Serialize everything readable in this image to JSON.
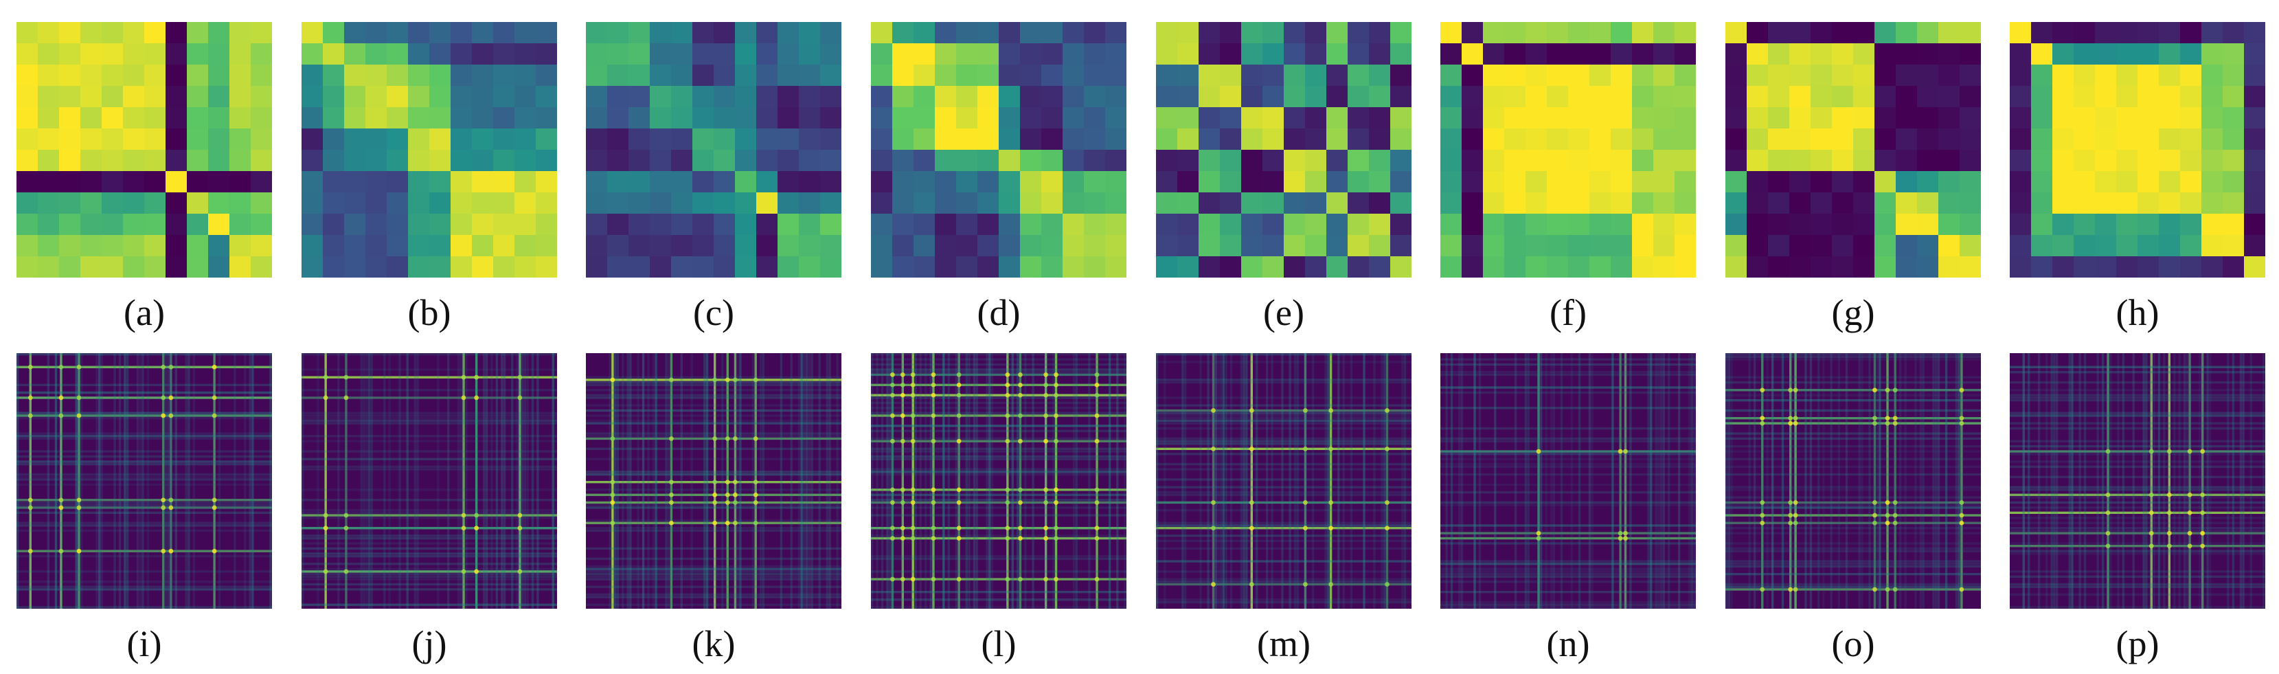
{
  "colors": {
    "colormap": "viridis",
    "viridis_stops": [
      "#440154",
      "#3b528b",
      "#21918c",
      "#5ec962",
      "#fde725"
    ],
    "background": "#ffffff",
    "label_color": "#111111"
  },
  "chart_data": [
    {
      "type": "heatmap",
      "label": "(a)",
      "size": 12,
      "blocks": [
        [
          0,
          7
        ],
        [
          7,
          8
        ],
        [
          8,
          9
        ],
        [
          9,
          10
        ],
        [
          10,
          12
        ]
      ],
      "pattern": "two-cluster"
    },
    {
      "type": "heatmap",
      "label": "(b)",
      "size": 12,
      "blocks": [
        [
          0,
          1
        ],
        [
          1,
          2
        ],
        [
          2,
          5
        ],
        [
          5,
          7
        ],
        [
          7,
          12
        ]
      ],
      "pattern": "central-high"
    },
    {
      "type": "heatmap",
      "label": "(c)",
      "size": 12,
      "blocks": [
        [
          0,
          3
        ],
        [
          3,
          5
        ],
        [
          5,
          7
        ],
        [
          7,
          8
        ],
        [
          8,
          9
        ],
        [
          9,
          12
        ]
      ],
      "pattern": "low-diffuse"
    },
    {
      "type": "heatmap",
      "label": "(d)",
      "size": 12,
      "blocks": [
        [
          0,
          1
        ],
        [
          1,
          3
        ],
        [
          3,
          6
        ],
        [
          6,
          7
        ],
        [
          7,
          9
        ],
        [
          9,
          12
        ]
      ],
      "pattern": "central-high"
    },
    {
      "type": "heatmap",
      "label": "(e)",
      "size": 12,
      "blocks": [
        [
          0,
          2
        ],
        [
          2,
          4
        ],
        [
          4,
          6
        ],
        [
          6,
          8
        ],
        [
          8,
          9
        ],
        [
          9,
          11
        ],
        [
          11,
          12
        ]
      ],
      "pattern": "checker"
    },
    {
      "type": "heatmap",
      "label": "(f)",
      "size": 12,
      "blocks": [
        [
          0,
          1
        ],
        [
          1,
          2
        ],
        [
          2,
          9
        ],
        [
          9,
          12
        ]
      ],
      "pattern": "large-high"
    },
    {
      "type": "heatmap",
      "label": "(g)",
      "size": 12,
      "blocks": [
        [
          0,
          1
        ],
        [
          1,
          7
        ],
        [
          7,
          8
        ],
        [
          8,
          10
        ],
        [
          10,
          12
        ]
      ],
      "pattern": "two-cluster"
    },
    {
      "type": "heatmap",
      "label": "(h)",
      "size": 12,
      "blocks": [
        [
          0,
          1
        ],
        [
          1,
          2
        ],
        [
          2,
          9
        ],
        [
          9,
          11
        ],
        [
          11,
          12
        ]
      ],
      "pattern": "ring-high"
    },
    {
      "type": "heatmap",
      "label": "(i)",
      "size": 100,
      "pattern": "sparse-lines",
      "line_positions": [
        5,
        17,
        24,
        57,
        60,
        77
      ]
    },
    {
      "type": "heatmap",
      "label": "(j)",
      "size": 100,
      "pattern": "sparse-lines",
      "line_positions": [
        9,
        17,
        63,
        68,
        85
      ]
    },
    {
      "type": "heatmap",
      "label": "(k)",
      "size": 100,
      "pattern": "sparse-lines",
      "line_positions": [
        10,
        33,
        50,
        55,
        58,
        66
      ]
    },
    {
      "type": "heatmap",
      "label": "(l)",
      "size": 100,
      "pattern": "sparse-lines",
      "line_positions": [
        8,
        12,
        16,
        24,
        34,
        53,
        58,
        68,
        72,
        88
      ]
    },
    {
      "type": "heatmap",
      "label": "(m)",
      "size": 100,
      "pattern": "sparse-lines",
      "line_positions": [
        22,
        37,
        58,
        68,
        90
      ]
    },
    {
      "type": "heatmap",
      "label": "(n)",
      "size": 100,
      "pattern": "sparse-lines",
      "line_positions": [
        38,
        70,
        72
      ]
    },
    {
      "type": "heatmap",
      "label": "(o)",
      "size": 100,
      "pattern": "sparse-lines",
      "line_positions": [
        14,
        25,
        27,
        58,
        63,
        66,
        92
      ]
    },
    {
      "type": "heatmap",
      "label": "(p)",
      "size": 100,
      "pattern": "sparse-lines",
      "line_positions": [
        38,
        55,
        62,
        70,
        75
      ]
    }
  ]
}
